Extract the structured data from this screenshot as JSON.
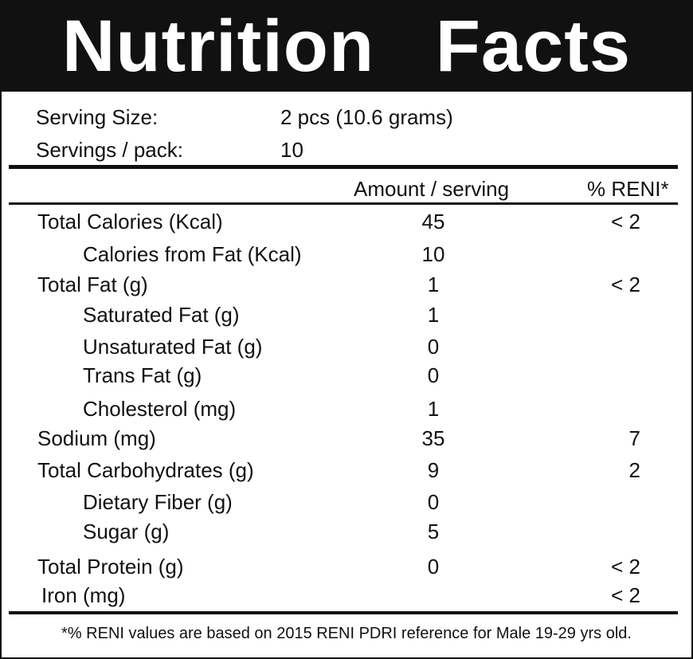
{
  "header": {
    "title": "Nutrition Facts"
  },
  "serving": [
    {
      "label": "Serving Size:",
      "value": "2 pcs (10.6 grams)"
    },
    {
      "label": "Servings / pack:",
      "value": "10"
    }
  ],
  "table": {
    "columns": [
      "Amount / serving",
      "% RENI*"
    ],
    "rows": [
      {
        "name": "Total Calories (Kcal)",
        "amount": 45,
        "reni": "< 2"
      },
      {
        "name": "Calories from Fat (Kcal)",
        "amount": 10
      },
      {
        "name": "Total Fat (g)",
        "amount": 1,
        "reni": "< 2"
      },
      {
        "name": "Saturated Fat (g)",
        "amount": 1
      },
      {
        "name": "Unsaturated Fat (g)",
        "amount": 0
      },
      {
        "name": "Trans Fat (g)",
        "amount": 0
      },
      {
        "name": "Cholesterol (mg)",
        "amount": 1
      },
      {
        "name": "Sodium (mg)",
        "amount": 35,
        "reni": 7
      },
      {
        "name": "Total Carbohydrates (g)",
        "amount": 9,
        "reni": 2
      },
      {
        "name": "Dietary Fiber (g)",
        "amount": 0
      },
      {
        "name": "Sugar (g)",
        "amount": 5
      },
      {
        "name": "Total Protein (g)",
        "amount": 0,
        "reni": "< 2"
      },
      {
        "name": "Iron (mg)",
        "reni": "< 2"
      }
    ]
  },
  "footnote": "*% RENI values are based on 2015 RENI PDRI reference for Male 19-29 yrs old."
}
